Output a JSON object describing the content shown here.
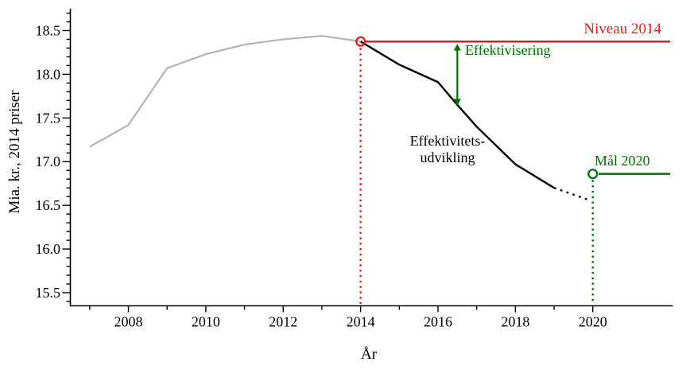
{
  "figure": {
    "background": "#ffffff",
    "colors": {
      "red": "#e41b1b",
      "green": "#007000",
      "gray": "#b3b3b3",
      "black": "#000000",
      "axis": "#000000"
    }
  },
  "chart_data": {
    "type": "line",
    "title": "",
    "xlabel": "År",
    "ylabel": "Mia. kr., 2014 priser",
    "xlim": [
      2006.5,
      2022.07
    ],
    "ylim": [
      15.35,
      18.75
    ],
    "grid": false,
    "legend": "none",
    "x_ticks_major": [
      2008,
      2010,
      2012,
      2014,
      2016,
      2018,
      2020
    ],
    "x_tick_labels": [
      "2008",
      "2010",
      "2012",
      "2014",
      "2016",
      "2018",
      "2020"
    ],
    "x_ticks_minor": [
      2007,
      2009,
      2011,
      2013,
      2015,
      2017,
      2019
    ],
    "y_ticks_major": [
      15.5,
      16.0,
      16.5,
      17.0,
      17.5,
      18.0,
      18.5
    ],
    "y_tick_labels": [
      "15.5",
      "16.0",
      "16.5",
      "17.0",
      "17.5",
      "18.0",
      "18.5"
    ],
    "y_minor_step": 0.1,
    "series": [
      {
        "id": "historical",
        "color_key": "gray",
        "style": "solid",
        "points": [
          [
            2007,
            17.17
          ],
          [
            2008,
            17.42
          ],
          [
            2009,
            18.07
          ],
          [
            2010,
            18.23
          ],
          [
            2011,
            18.34
          ],
          [
            2012,
            18.4
          ],
          [
            2013,
            18.44
          ],
          [
            2014,
            18.375
          ]
        ]
      },
      {
        "id": "effektivitetsudvikling",
        "color_key": "black",
        "style": "solid",
        "points": [
          [
            2014,
            18.375
          ],
          [
            2015,
            18.11
          ],
          [
            2016,
            17.91
          ],
          [
            2016.5,
            17.65
          ],
          [
            2017,
            17.4
          ],
          [
            2018,
            16.97
          ],
          [
            2019,
            16.7
          ]
        ]
      },
      {
        "id": "projection-dotted",
        "color_key": "black",
        "style": "dotted",
        "points": [
          [
            2019,
            16.7
          ],
          [
            2019.85,
            16.57
          ]
        ]
      }
    ],
    "reference_lines": [
      {
        "id": "niveau-2014",
        "label": "Niveau 2014",
        "color_key": "red",
        "y": 18.375,
        "x_start": 2014.13,
        "x_end": 2022.0,
        "marker": {
          "x": 2014,
          "y": 18.375
        }
      },
      {
        "id": "maal-2020",
        "label": "Mål 2020",
        "color_key": "green",
        "y": 16.86,
        "x_start": 2020.15,
        "x_end": 2022.0,
        "marker": {
          "x": 2020,
          "y": 16.86
        }
      }
    ],
    "vertical_dotted_lines": [
      {
        "id": "vline-2014",
        "x": 2014,
        "color_key": "red",
        "y_from": 15.37,
        "y_to": 18.3
      },
      {
        "id": "vline-2020",
        "x": 2020,
        "color_key": "green",
        "y_from": 15.37,
        "y_to": 16.79
      }
    ],
    "arrow": {
      "id": "effektivisering-arrow",
      "x": 2016.5,
      "y_from": 18.35,
      "y_to": 17.64,
      "color_key": "green",
      "label": "Effektivisering"
    },
    "annotations": {
      "niveau_2014": "Niveau 2014",
      "effektivisering": "Effektivisering",
      "effektivitetsudvikling_line1": "Effektivitets-",
      "effektivitetsudvikling_line2": "udvikling",
      "maal_2020": "Mål 2020"
    }
  }
}
